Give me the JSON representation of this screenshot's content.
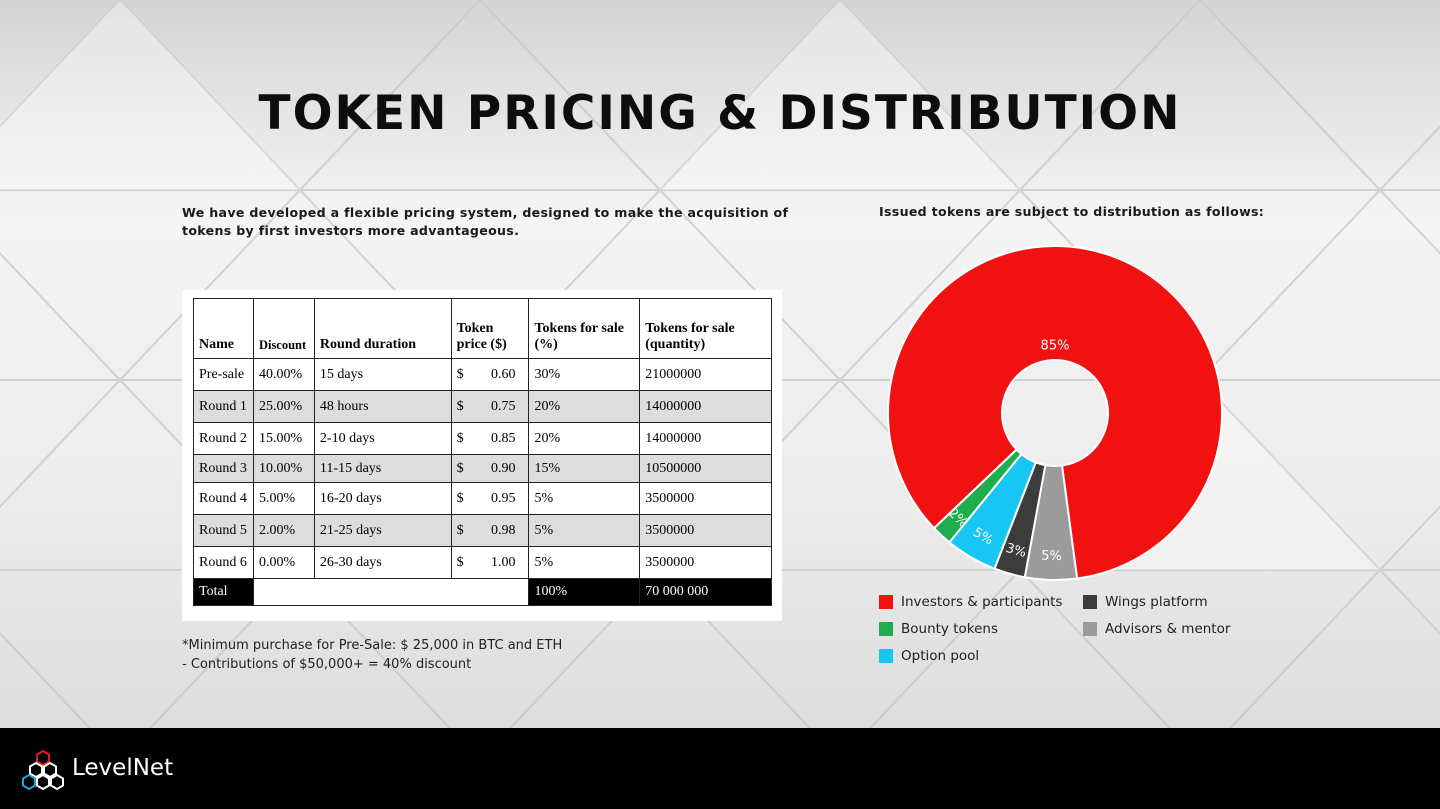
{
  "slide": {
    "title": "TOKEN PRICING & DISTRIBUTION",
    "intro_left": "We have developed a flexible pricing system, designed to make the acquisition of tokens by first investors more advantageous.",
    "intro_right": "Issued tokens are subject to distribution as follows:"
  },
  "table": {
    "headers": [
      "Name",
      "Discount",
      "Round duration",
      "Token price ($)",
      "Tokens for sale (%)",
      "Tokens for sale (quantity)"
    ],
    "currency": "$",
    "rows": [
      {
        "name": "Pre-sale",
        "discount": "40.00%",
        "duration": "15 days",
        "price": "0.60",
        "pct": "30%",
        "qty": "21000000"
      },
      {
        "name": "Round 1",
        "discount": "25.00%",
        "duration": "48 hours",
        "price": "0.75",
        "pct": "20%",
        "qty": "14000000"
      },
      {
        "name": "Round 2",
        "discount": "15.00%",
        "duration": "2-10 days",
        "price": "0.85",
        "pct": "20%",
        "qty": "14000000"
      },
      {
        "name": "Round 3",
        "discount": "10.00%",
        "duration": "11-15 days",
        "price": "0.90",
        "pct": "15%",
        "qty": "10500000"
      },
      {
        "name": "Round 4",
        "discount": "5.00%",
        "duration": "16-20 days",
        "price": "0.95",
        "pct": "5%",
        "qty": "3500000"
      },
      {
        "name": "Round 5",
        "discount": "2.00%",
        "duration": "21-25 days",
        "price": "0.98",
        "pct": "5%",
        "qty": "3500000"
      },
      {
        "name": "Round 6",
        "discount": "0.00%",
        "duration": "26-30 days",
        "price": "1.00",
        "pct": "5%",
        "qty": "3500000"
      }
    ],
    "total": {
      "label": "Total",
      "pct": "100%",
      "qty": "70 000 000"
    }
  },
  "notes": {
    "line1": "*Minimum purchase for Pre-Sale: $ 25,000 in BTC and ETH",
    "line2": "- Contributions of $50,000+ = 40% discount"
  },
  "chart_data": {
    "type": "pie",
    "donut": true,
    "slices": [
      {
        "label": "Investors & participants",
        "value": 85,
        "text": "85%",
        "color": "#f21111"
      },
      {
        "label": "Bounty tokens",
        "value": 2,
        "text": "2%",
        "color": "#1fae4f"
      },
      {
        "label": "Option pool",
        "value": 5,
        "text": "5%",
        "color": "#17c6f3"
      },
      {
        "label": "Wings platform",
        "value": 3,
        "text": "3%",
        "color": "#3c3c3c"
      },
      {
        "label": "Advisors & mentor",
        "value": 5,
        "text": "5%",
        "color": "#9b9b9b"
      }
    ],
    "legend": [
      "Investors & participants",
      "Wings platform",
      "Bounty tokens",
      "Advisors & mentor",
      "Option pool"
    ],
    "legend_placement": "bottom"
  },
  "footer": {
    "brand": "LevelNet",
    "logo_icon": "hexagon-cluster-icon"
  }
}
